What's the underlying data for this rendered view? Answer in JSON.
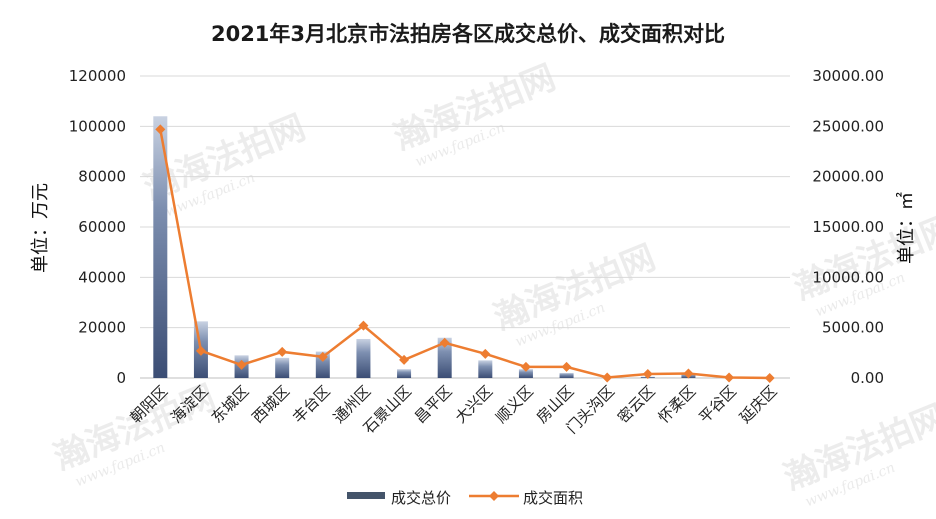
{
  "title": "2021年3月北京市法拍房各区成交总价、成交面积对比",
  "watermark": {
    "brand": "瀚海法拍网",
    "url": "www.fapai.cn"
  },
  "chart_data": {
    "type": "bar",
    "title": "2021年3月北京市法拍房各区成交总价、成交面积对比",
    "categories": [
      "朝阳区",
      "海淀区",
      "东城区",
      "西城区",
      "丰台区",
      "通州区",
      "石景山区",
      "昌平区",
      "大兴区",
      "顺义区",
      "房山区",
      "门头沟区",
      "密云区",
      "怀柔区",
      "平谷区",
      "延庆区"
    ],
    "ylabel": "单位：万元",
    "y2label": "单位：㎡",
    "ylim": [
      0,
      120000
    ],
    "y2lim": [
      0,
      30000
    ],
    "yticks": [
      "0",
      "20000",
      "40000",
      "60000",
      "80000",
      "100000",
      "120000"
    ],
    "y2ticks": [
      "0.00",
      "5000.00",
      "10000.00",
      "15000.00",
      "20000.00",
      "25000.00",
      "30000.00"
    ],
    "grid": true,
    "legend_position": "bottom",
    "series": [
      {
        "name": "成交总价",
        "type": "bar",
        "axis": "left",
        "color": "#44546A",
        "values": [
          104000,
          22500,
          9000,
          8000,
          10500,
          15500,
          3500,
          16000,
          7000,
          3500,
          2000,
          0,
          500,
          1500,
          0,
          0
        ]
      },
      {
        "name": "成交面积",
        "type": "line",
        "axis": "right",
        "color": "#ED7D31",
        "values": [
          24700,
          2700,
          1300,
          2600,
          2100,
          5200,
          1800,
          3500,
          2400,
          1100,
          1100,
          50,
          400,
          450,
          50,
          0
        ]
      }
    ]
  }
}
